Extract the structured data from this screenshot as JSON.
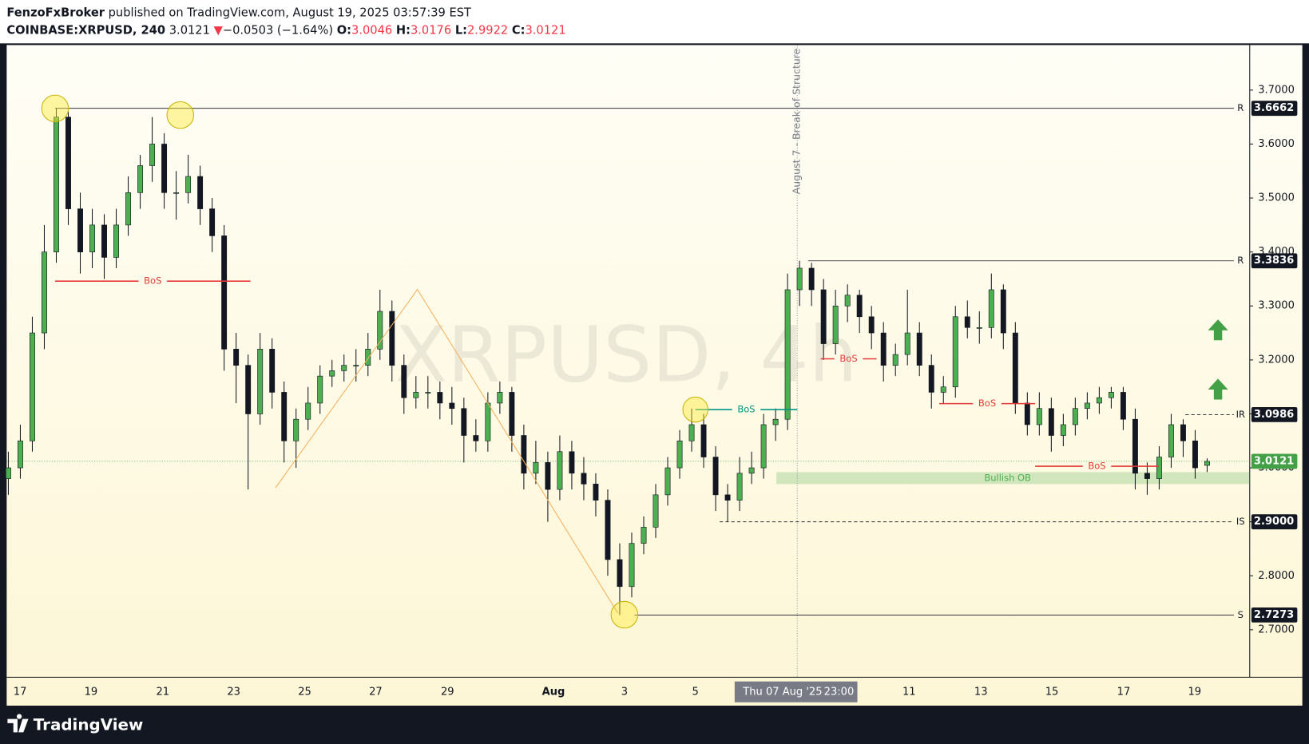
{
  "header": {
    "author": "FenzoFxBroker",
    "published": "published on TradingView.com, August 19, 2025 03:57:39 EST",
    "symbol": "COINBASE:XRPUSD, 240",
    "price": "3.0121",
    "arrow": "▼",
    "change": "−0.0503 (−1.64%)",
    "o_label": "O:",
    "o": "3.0046",
    "h_label": "H:",
    "h": "3.0176",
    "l_label": "L:",
    "l": "2.9922",
    "c_label": "C:",
    "c": "3.0121"
  },
  "chart_data": {
    "type": "candlestick",
    "watermark": "XRPUSD, 4h",
    "ohlc": [
      [
        2.98,
        3.03,
        2.95,
        3.0
      ],
      [
        3.0,
        3.08,
        2.98,
        3.05
      ],
      [
        3.05,
        3.28,
        3.03,
        3.25
      ],
      [
        3.25,
        3.45,
        3.22,
        3.4
      ],
      [
        3.4,
        3.6662,
        3.38,
        3.65
      ],
      [
        3.65,
        3.66,
        3.45,
        3.48
      ],
      [
        3.48,
        3.51,
        3.36,
        3.4
      ],
      [
        3.4,
        3.48,
        3.37,
        3.45
      ],
      [
        3.45,
        3.47,
        3.35,
        3.39
      ],
      [
        3.39,
        3.48,
        3.37,
        3.45
      ],
      [
        3.45,
        3.54,
        3.43,
        3.51
      ],
      [
        3.51,
        3.58,
        3.48,
        3.56
      ],
      [
        3.56,
        3.65,
        3.53,
        3.6
      ],
      [
        3.6,
        3.62,
        3.48,
        3.51
      ],
      [
        3.51,
        3.55,
        3.46,
        3.51
      ],
      [
        3.51,
        3.58,
        3.49,
        3.54
      ],
      [
        3.54,
        3.56,
        3.45,
        3.48
      ],
      [
        3.48,
        3.5,
        3.4,
        3.43
      ],
      [
        3.43,
        3.45,
        3.18,
        3.22
      ],
      [
        3.22,
        3.25,
        3.12,
        3.19
      ],
      [
        3.19,
        3.21,
        2.96,
        3.1
      ],
      [
        3.1,
        3.25,
        3.08,
        3.22
      ],
      [
        3.22,
        3.24,
        3.11,
        3.14
      ],
      [
        3.14,
        3.16,
        3.01,
        3.05
      ],
      [
        3.05,
        3.11,
        3.0,
        3.09
      ],
      [
        3.09,
        3.15,
        3.07,
        3.12
      ],
      [
        3.12,
        3.19,
        3.1,
        3.17
      ],
      [
        3.17,
        3.2,
        3.15,
        3.18
      ],
      [
        3.18,
        3.21,
        3.16,
        3.19
      ],
      [
        3.19,
        3.22,
        3.16,
        3.19
      ],
      [
        3.19,
        3.25,
        3.17,
        3.22
      ],
      [
        3.22,
        3.33,
        3.2,
        3.29
      ],
      [
        3.29,
        3.31,
        3.16,
        3.19
      ],
      [
        3.19,
        3.21,
        3.1,
        3.13
      ],
      [
        3.13,
        3.17,
        3.11,
        3.14
      ],
      [
        3.14,
        3.17,
        3.11,
        3.14
      ],
      [
        3.14,
        3.16,
        3.09,
        3.12
      ],
      [
        3.12,
        3.15,
        3.08,
        3.11
      ],
      [
        3.11,
        3.13,
        3.01,
        3.06
      ],
      [
        3.06,
        3.09,
        3.03,
        3.05
      ],
      [
        3.05,
        3.14,
        3.03,
        3.12
      ],
      [
        3.12,
        3.16,
        3.1,
        3.14
      ],
      [
        3.14,
        3.15,
        3.03,
        3.06
      ],
      [
        3.06,
        3.08,
        2.96,
        2.99
      ],
      [
        2.99,
        3.05,
        2.97,
        3.01
      ],
      [
        3.01,
        3.03,
        2.9,
        2.96
      ],
      [
        2.96,
        3.06,
        2.94,
        3.03
      ],
      [
        3.03,
        3.05,
        2.96,
        2.99
      ],
      [
        2.99,
        3.02,
        2.94,
        2.97
      ],
      [
        2.97,
        2.99,
        2.91,
        2.94
      ],
      [
        2.94,
        2.96,
        2.8,
        2.83
      ],
      [
        2.83,
        2.86,
        2.7273,
        2.78
      ],
      [
        2.78,
        2.88,
        2.76,
        2.86
      ],
      [
        2.86,
        2.91,
        2.84,
        2.89
      ],
      [
        2.89,
        2.97,
        2.87,
        2.95
      ],
      [
        2.95,
        3.02,
        2.93,
        3.0
      ],
      [
        3.0,
        3.07,
        2.98,
        3.05
      ],
      [
        3.05,
        3.11,
        3.03,
        3.08
      ],
      [
        3.08,
        3.1,
        3.0,
        3.02
      ],
      [
        3.02,
        3.04,
        2.92,
        2.95
      ],
      [
        2.95,
        2.97,
        2.9,
        2.94
      ],
      [
        2.94,
        3.02,
        2.92,
        2.99
      ],
      [
        2.99,
        3.03,
        2.97,
        3.0
      ],
      [
        3.0,
        3.1,
        2.98,
        3.08
      ],
      [
        3.08,
        3.11,
        3.05,
        3.09
      ],
      [
        3.09,
        3.36,
        3.07,
        3.33
      ],
      [
        3.33,
        3.3836,
        3.3,
        3.37
      ],
      [
        3.37,
        3.38,
        3.3,
        3.33
      ],
      [
        3.33,
        3.35,
        3.2,
        3.23
      ],
      [
        3.23,
        3.33,
        3.21,
        3.3
      ],
      [
        3.3,
        3.34,
        3.27,
        3.32
      ],
      [
        3.32,
        3.33,
        3.25,
        3.28
      ],
      [
        3.28,
        3.3,
        3.22,
        3.25
      ],
      [
        3.25,
        3.27,
        3.16,
        3.19
      ],
      [
        3.19,
        3.23,
        3.17,
        3.21
      ],
      [
        3.21,
        3.33,
        3.19,
        3.25
      ],
      [
        3.25,
        3.27,
        3.17,
        3.19
      ],
      [
        3.19,
        3.21,
        3.11,
        3.14
      ],
      [
        3.14,
        3.17,
        3.12,
        3.15
      ],
      [
        3.15,
        3.3,
        3.13,
        3.28
      ],
      [
        3.28,
        3.31,
        3.24,
        3.26
      ],
      [
        3.26,
        3.29,
        3.23,
        3.26
      ],
      [
        3.26,
        3.36,
        3.24,
        3.33
      ],
      [
        3.33,
        3.34,
        3.22,
        3.25
      ],
      [
        3.25,
        3.27,
        3.1,
        3.12
      ],
      [
        3.12,
        3.14,
        3.06,
        3.08
      ],
      [
        3.08,
        3.14,
        3.06,
        3.11
      ],
      [
        3.11,
        3.13,
        3.03,
        3.06
      ],
      [
        3.06,
        3.1,
        3.04,
        3.08
      ],
      [
        3.08,
        3.13,
        3.06,
        3.11
      ],
      [
        3.11,
        3.14,
        3.09,
        3.12
      ],
      [
        3.12,
        3.15,
        3.1,
        3.13
      ],
      [
        3.13,
        3.15,
        3.11,
        3.14
      ],
      [
        3.14,
        3.15,
        3.07,
        3.09
      ],
      [
        3.09,
        3.11,
        2.96,
        2.99
      ],
      [
        2.99,
        3.01,
        2.95,
        2.98
      ],
      [
        2.98,
        3.04,
        2.96,
        3.02
      ],
      [
        3.02,
        3.1,
        3.0,
        3.08
      ],
      [
        3.08,
        3.09,
        3.02,
        3.05
      ],
      [
        3.05,
        3.07,
        2.98,
        3.0
      ],
      [
        3.0046,
        3.0176,
        2.9922,
        3.0121
      ]
    ],
    "up_color": "#4caf50",
    "down_color": "#131722",
    "ylim": [
      2.6119,
      3.7835
    ],
    "yticks": [
      {
        "value": 2.7,
        "label": "2.7000"
      },
      {
        "value": 2.8,
        "label": "2.8000"
      },
      {
        "value": 2.9,
        "label": "2.9000"
      },
      {
        "value": 3.0,
        "label": "3.0000"
      },
      {
        "value": 3.1,
        "label": "3.1000"
      },
      {
        "value": 3.2,
        "label": "3.2000"
      },
      {
        "value": 3.3,
        "label": "3.3000"
      },
      {
        "value": 3.4,
        "label": "3.4000"
      },
      {
        "value": 3.5,
        "label": "3.5000"
      },
      {
        "value": 3.6,
        "label": "3.6000"
      },
      {
        "value": 3.7,
        "label": "3.7000"
      }
    ],
    "x_labels": [
      "17",
      "19",
      "21",
      "23",
      "25",
      "27",
      "29",
      "Aug",
      "3",
      "5",
      "11",
      "13",
      "15",
      "17",
      "19"
    ],
    "crosshair_date": "Thu 07 Aug '25",
    "crosshair_time": "23:00",
    "vline_label": "August 7 - Break of Structure",
    "last_price": 3.0121,
    "last_color": "#43a047",
    "levels": [
      {
        "name": "R",
        "value": 3.6662,
        "style": "solid"
      },
      {
        "name": "R",
        "value": 3.3836,
        "style": "solid"
      },
      {
        "name": "IR",
        "value": 3.0986,
        "style": "dashed"
      },
      {
        "name": "IS",
        "value": 2.9,
        "label": "2.9000",
        "style": "dashed"
      },
      {
        "name": "S",
        "value": 2.7273,
        "style": "solid"
      }
    ],
    "bos": [
      {
        "text": "BoS",
        "value": 3.346,
        "color": "#e53935"
      },
      {
        "text": "BoS",
        "value": 3.108,
        "color": "#009688"
      },
      {
        "text": "BoS",
        "value": 3.202,
        "color": "#e53935"
      },
      {
        "text": "BoS",
        "value": 3.119,
        "color": "#e53935"
      },
      {
        "text": "BoS",
        "value": 3.003,
        "color": "#e53935"
      }
    ],
    "zone": {
      "label": "Bullish OB",
      "from": 2.97,
      "to": 2.992,
      "color": "#4caf50"
    }
  },
  "footer": {
    "brand": "TradingView"
  }
}
